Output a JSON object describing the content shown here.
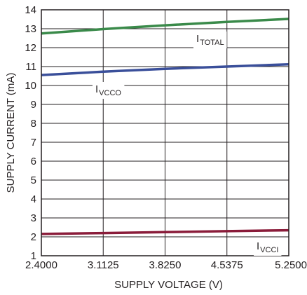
{
  "chart_data": {
    "type": "line",
    "xlabel": "SUPPLY VOLTAGE (V)",
    "ylabel": "SUPPLY CURRENT (mA)",
    "xlim": [
      2.4,
      5.25
    ],
    "ylim": [
      1,
      14
    ],
    "x_ticks": [
      "2.4000",
      "3.1125",
      "3.8250",
      "4.5375",
      "5.2500"
    ],
    "y_ticks": [
      "1",
      "2",
      "3",
      "4",
      "5",
      "6",
      "7",
      "8",
      "9",
      "10",
      "11",
      "12",
      "13",
      "14"
    ],
    "grid": true,
    "series": [
      {
        "name": "I_TOTAL",
        "label_main": "I",
        "label_sub": "TOTAL",
        "color": "#3a8a4a",
        "x": [
          2.4,
          3.1125,
          3.825,
          4.5375,
          5.25
        ],
        "y": [
          12.75,
          12.98,
          13.18,
          13.36,
          13.52
        ]
      },
      {
        "name": "I_VCCO",
        "label_main": "I",
        "label_sub": "VCCO",
        "color": "#3a4f9a",
        "x": [
          2.4,
          3.1125,
          3.825,
          4.5375,
          5.25
        ],
        "y": [
          10.55,
          10.73,
          10.88,
          11.0,
          11.12
        ]
      },
      {
        "name": "I_VCCI",
        "label_main": "I",
        "label_sub": "VCCI",
        "color": "#8a1c3a",
        "x": [
          2.4,
          3.1125,
          3.825,
          4.5375,
          5.25
        ],
        "y": [
          2.15,
          2.2,
          2.25,
          2.3,
          2.35
        ]
      }
    ]
  }
}
